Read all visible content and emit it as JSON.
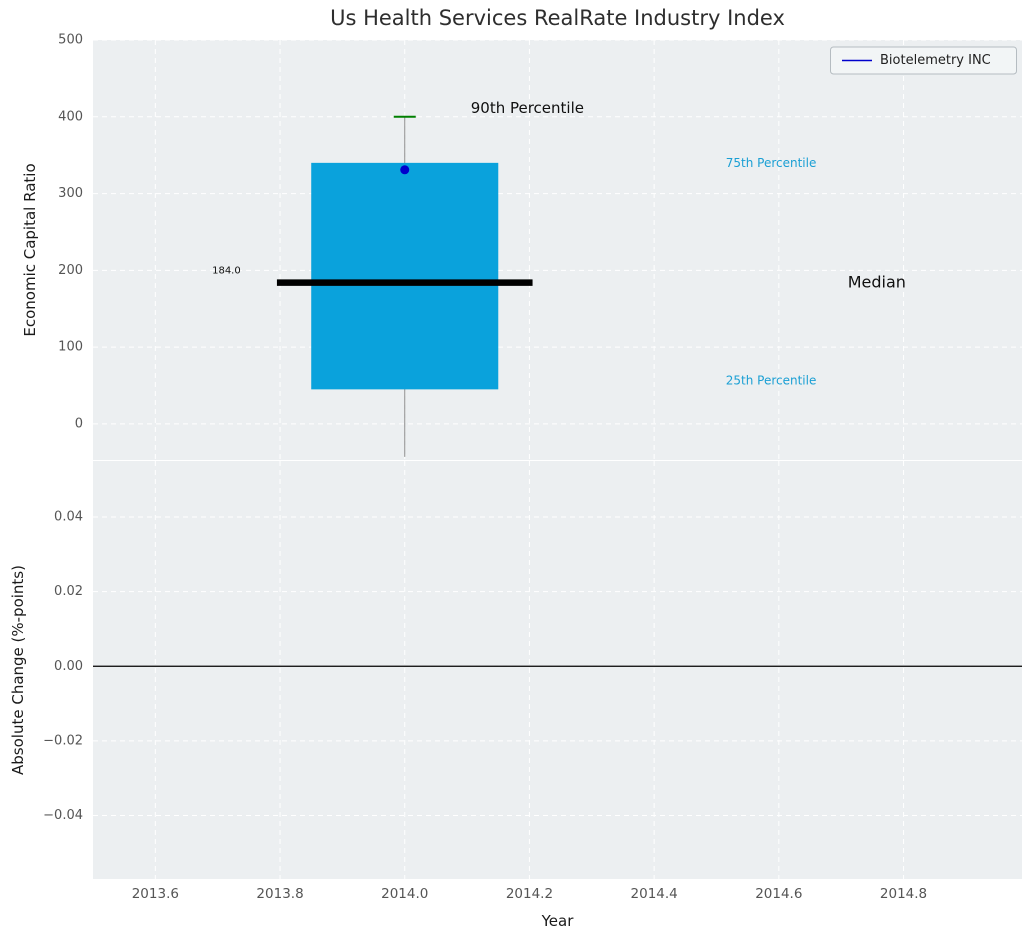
{
  "figure": {
    "background": "#ffffff",
    "panel_background": "#eceff1",
    "grid_color": "#ffffff"
  },
  "chart_data": {
    "type": "box",
    "title": "Us Health Services RealRate Industry Index",
    "x": {
      "label": "Year",
      "lim": [
        2013.5,
        2014.99
      ],
      "ticks": [
        {
          "value": 2013.6,
          "label": "2013.6"
        },
        {
          "value": 2013.8,
          "label": "2013.8"
        },
        {
          "value": 2014.0,
          "label": "2014.0"
        },
        {
          "value": 2014.2,
          "label": "2014.2"
        },
        {
          "value": 2014.4,
          "label": "2014.4"
        },
        {
          "value": 2014.6,
          "label": "2014.6"
        },
        {
          "value": 2014.8,
          "label": "2014.8"
        }
      ]
    },
    "panels": {
      "top": {
        "ylabel": "Economic Capital Ratio",
        "ylim": [
          -47,
          500
        ],
        "yticks": [
          {
            "value": 0,
            "label": "0"
          },
          {
            "value": 100,
            "label": "100"
          },
          {
            "value": 200,
            "label": "200"
          },
          {
            "value": 300,
            "label": "300"
          },
          {
            "value": 400,
            "label": "400"
          },
          {
            "value": 500,
            "label": "500"
          }
        ],
        "box": {
          "x": 2014.0,
          "q1": 45,
          "median": 184,
          "q3": 340,
          "whisker_low": -43,
          "whisker_high": 400,
          "box_halfwidth": 0.15,
          "median_halfwidth": 0.205,
          "box_color": "#0aa2dc",
          "median_color": "#000000",
          "whisker_color": "#8f8f8f",
          "cap_color": "#008000"
        },
        "point": {
          "series": "Biotelemetry INC",
          "x": 2014.0,
          "value": 331,
          "color": "#0000cc",
          "radius": 4.5
        },
        "annotations": {
          "p90": {
            "text": "90th Percentile",
            "color": "#101010",
            "size": 15
          },
          "p75": {
            "text": "75th Percentile",
            "color": "#1a9fd4",
            "size": 12
          },
          "p25": {
            "text": "25th Percentile",
            "color": "#1a9fd4",
            "size": 12
          },
          "median": {
            "text": "Median",
            "color": "#101010",
            "size": 16
          },
          "median_value": {
            "text": "184.0",
            "color": "#101010",
            "size": 10
          }
        }
      },
      "bottom": {
        "ylabel": "Absolute Change (%-points)",
        "ylim": [
          -0.057,
          0.055
        ],
        "yticks": [
          {
            "value": 0.04,
            "label": "0.04"
          },
          {
            "value": 0.02,
            "label": "0.02"
          },
          {
            "value": 0.0,
            "label": "0.00"
          },
          {
            "value": -0.02,
            "label": "−0.02"
          },
          {
            "value": -0.04,
            "label": "−0.04"
          }
        ],
        "zero_line": {
          "value": 0.0,
          "color": "#000000"
        }
      }
    },
    "legend": {
      "label": "Biotelemetry INC",
      "line_color": "#0000cc"
    }
  }
}
